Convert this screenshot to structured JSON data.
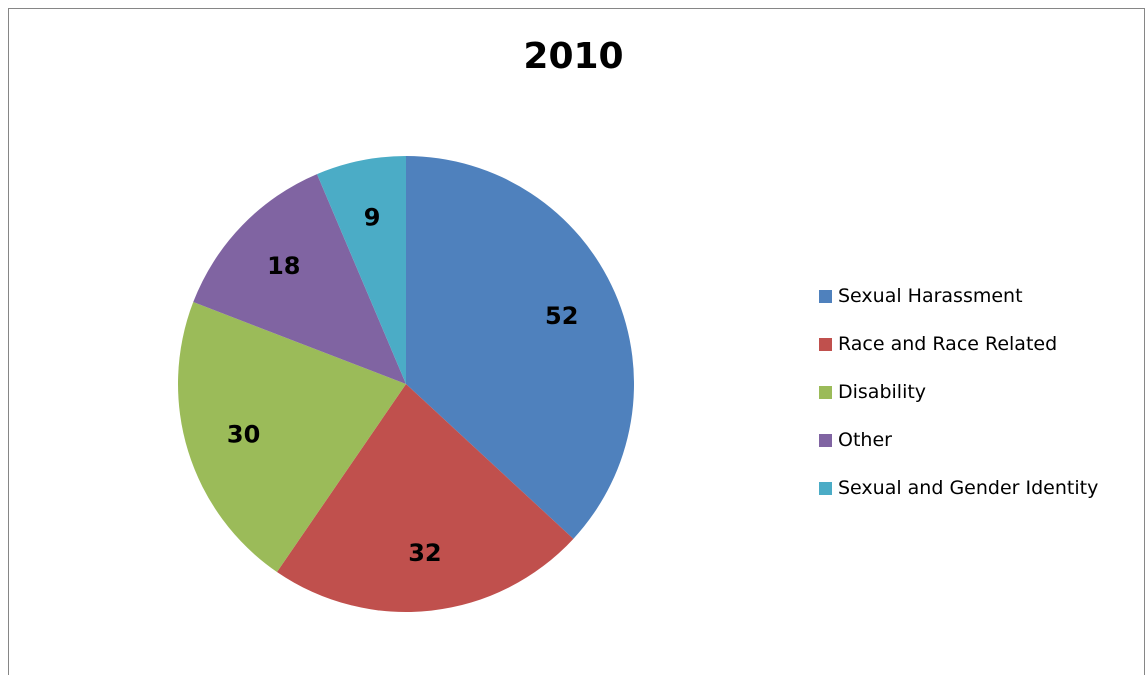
{
  "chart_data": {
    "type": "pie",
    "title": "2010",
    "categories": [
      "Sexual Harassment",
      "Race and Race Related",
      "Disability",
      "Other",
      "Sexual and Gender Identity"
    ],
    "values": [
      52,
      32,
      30,
      18,
      9
    ],
    "colors": [
      "#4F81BD",
      "#C0504D",
      "#9BBB59",
      "#8064A2",
      "#4BACC6"
    ],
    "start_angle_deg": 0,
    "direction": "clockwise",
    "data_labels": "values",
    "legend_position": "right"
  }
}
